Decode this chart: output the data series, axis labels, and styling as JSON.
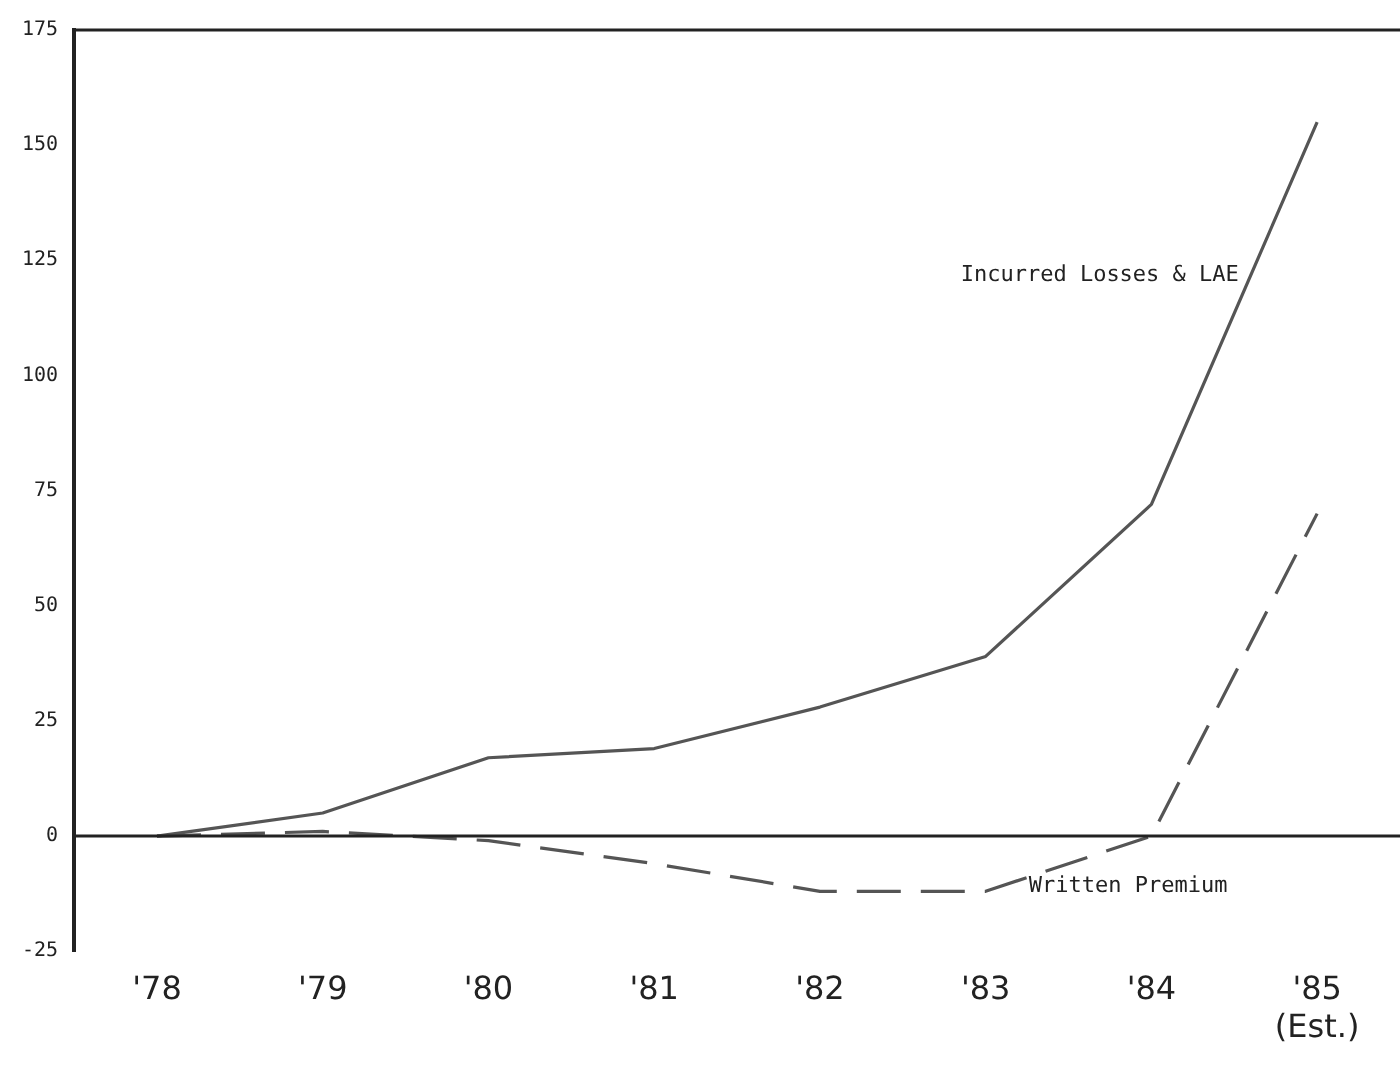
{
  "chart_data": {
    "type": "line",
    "categories": [
      "'78",
      "'79",
      "'80",
      "'81",
      "'82",
      "'83",
      "'84",
      "'85 (Est.)"
    ],
    "series": [
      {
        "name": "Incurred Losses & LAE",
        "color": "#555555",
        "line_style": "solid",
        "values": [
          0,
          5,
          17,
          19,
          28,
          39,
          72,
          155
        ]
      },
      {
        "name": "Written Premium",
        "color": "#555555",
        "line_style": "dashed",
        "values": [
          0,
          1,
          -1,
          -6,
          -12,
          -12,
          0,
          70
        ]
      }
    ],
    "ylim": [
      -25,
      175
    ],
    "yticks": [
      -25,
      0,
      25,
      50,
      75,
      100,
      125,
      150,
      175
    ],
    "ref_lines": [
      {
        "axis": "y",
        "value": 0,
        "color": "#222222"
      }
    ],
    "grid": false,
    "legend": false,
    "marker": "none"
  }
}
